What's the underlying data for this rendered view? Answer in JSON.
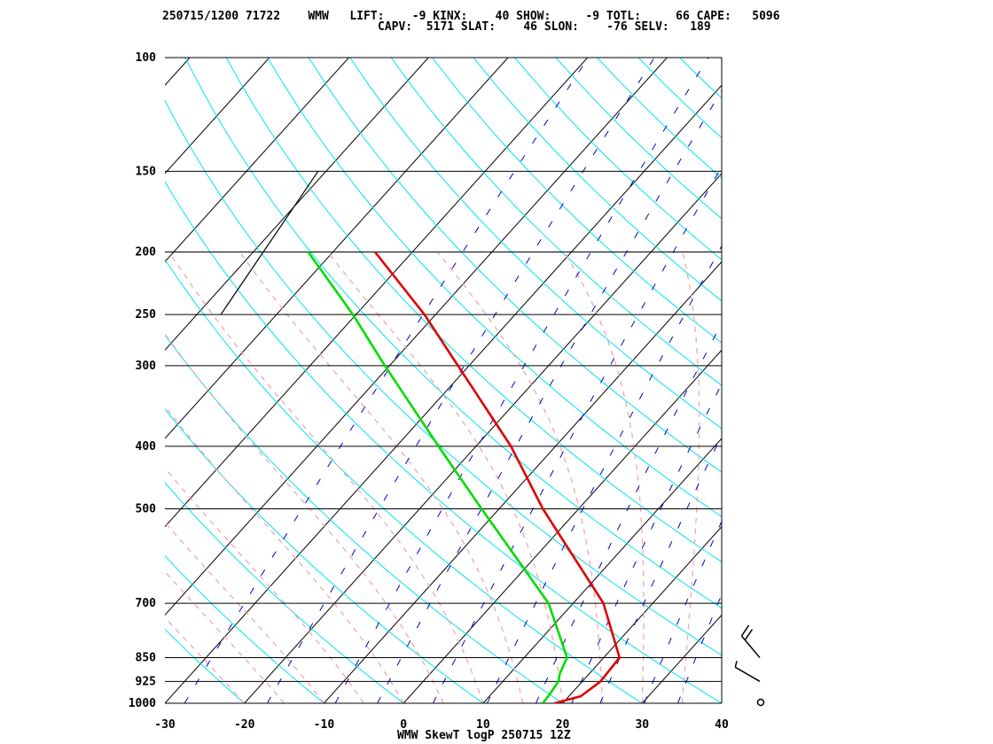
{
  "header": {
    "line1": "250715/1200 71722    WMW   LIFT:    -9 KINX:    40 SHOW:     -9 TOTL:     66 CAPE:   5096",
    "line2": "CAPV:  5171 SLAT:    46 SLON:    -76 SELV:   189"
  },
  "footer": {
    "label": "WMW SkewT logP 250715 12Z"
  },
  "colors": {
    "isobar": "#000000",
    "isotherm": "#000000",
    "dry_adiabat": "#00e5ee",
    "moist_adiabat": "#f4a6b0",
    "mixing_ratio": "#0000cc",
    "temperature": "#e00000",
    "dewpoint": "#00dd00",
    "parcel": "#000000"
  },
  "chart_data": {
    "type": "line",
    "chart_kind": "skew-T log-P thermodynamic diagram",
    "x_ticks": [
      "-30",
      "-20",
      "-10",
      "0",
      "10",
      "20",
      "30",
      "40"
    ],
    "y_ticks": [
      "100",
      "150",
      "200",
      "250",
      "300",
      "400",
      "500",
      "700",
      "850",
      "925",
      "1000"
    ],
    "xlim": [
      -30,
      40
    ],
    "ylim": [
      1000,
      100
    ],
    "y_scale": "log",
    "series": [
      {
        "kind": "temperature",
        "points": [
          [
            1000,
            19.0
          ],
          [
            975,
            21.5
          ],
          [
            925,
            22.3
          ],
          [
            900,
            22.2
          ],
          [
            850,
            22.0
          ],
          [
            700,
            13.8
          ],
          [
            500,
            -4.5
          ],
          [
            400,
            -15.6
          ],
          [
            300,
            -31.4
          ],
          [
            250,
            -41.4
          ],
          [
            200,
            -54.7
          ]
        ]
      },
      {
        "kind": "dewpoint",
        "points": [
          [
            1000,
            17.5
          ],
          [
            975,
            17.4
          ],
          [
            925,
            17.0
          ],
          [
            900,
            16.3
          ],
          [
            850,
            15.4
          ],
          [
            700,
            6.9
          ],
          [
            500,
            -12.2
          ],
          [
            400,
            -24.7
          ],
          [
            300,
            -40.6
          ],
          [
            250,
            -50.4
          ],
          [
            200,
            -63.1
          ]
        ]
      },
      {
        "kind": "parcel",
        "points": [
          [
            250,
            -67.0
          ],
          [
            150,
            -71.0
          ]
        ]
      }
    ],
    "wind_barbs": [
      {
        "pressure": 850,
        "direction": 320,
        "speed_kt": 20
      },
      {
        "pressure": 925,
        "direction": 300,
        "speed_kt": 5
      }
    ],
    "surface_wind": "calm",
    "isotherm_spacing": 10,
    "grid": true
  }
}
